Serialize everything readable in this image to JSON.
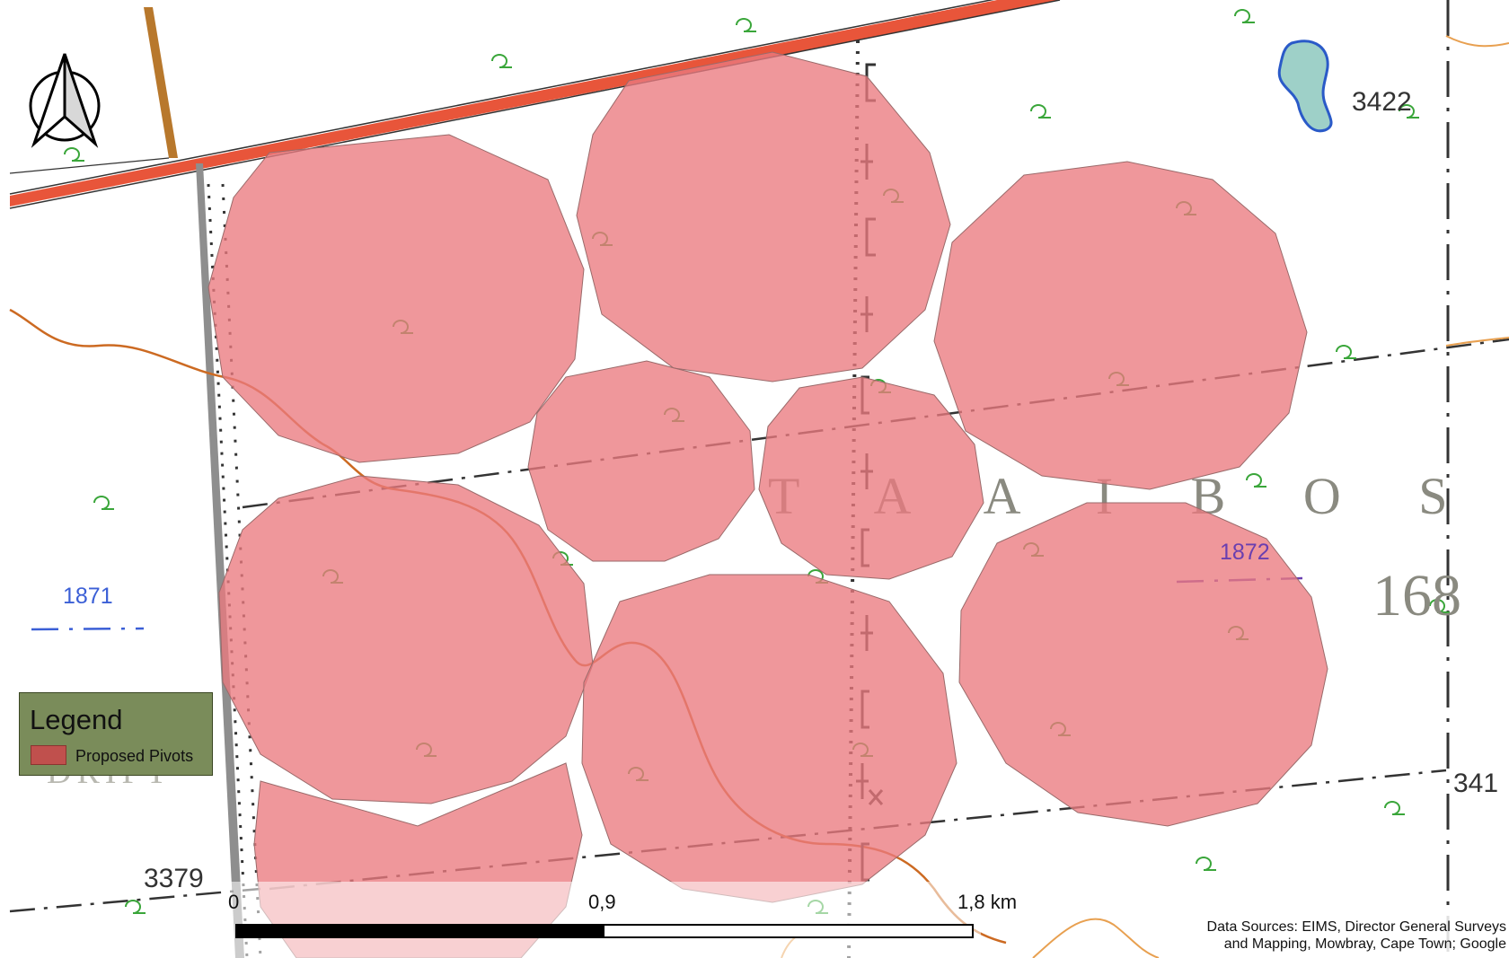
{
  "map": {
    "place_name": "T A A I B O S C H",
    "farm_number": "168",
    "drift_label": "DRIFT",
    "elevation_labels": [
      "3422",
      "3379",
      "341"
    ],
    "contour_labels": [
      "1871",
      "1872"
    ]
  },
  "legend": {
    "title": "Legend",
    "items": [
      {
        "label": "Proposed Pivots",
        "color": "#c0504d"
      }
    ]
  },
  "scale_bar": {
    "ticks": [
      "0",
      "0,9",
      "1,8 km"
    ]
  },
  "sources": {
    "line1": "Data Sources: EIMS,  Director General Surveys",
    "line2": "and Mapping, Mowbray, Cape Town; Google"
  },
  "colors": {
    "pivot_fill": "#eb7a7f",
    "road": "#e8553a",
    "river": "#cc6a22",
    "water": "#9ed0c8",
    "legend_bg": "#7a8c5a",
    "frame": "#4b5a2a"
  },
  "icons": {
    "north_arrow": "north-arrow-icon",
    "pan": "pan-icon"
  }
}
